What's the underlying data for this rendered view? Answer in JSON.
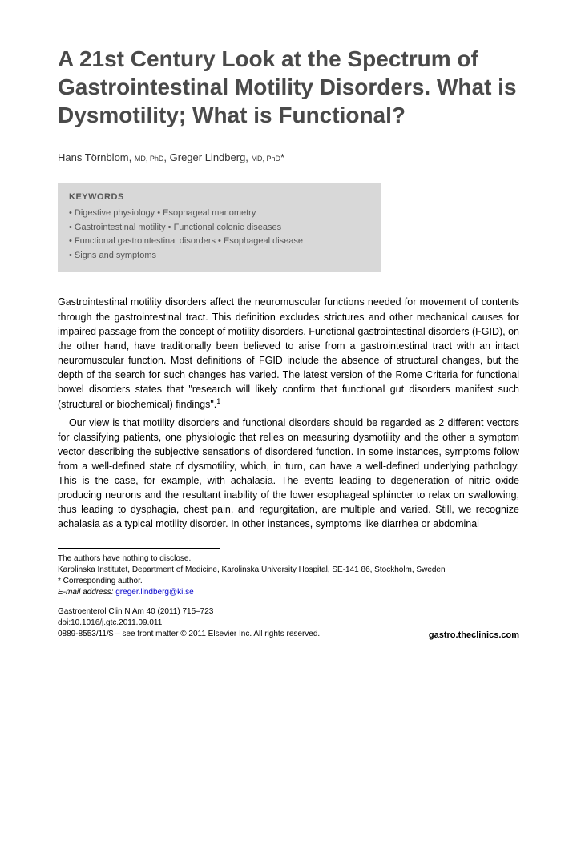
{
  "title": "A 21st Century Look at the Spectrum of Gastrointestinal Motility Disorders. What is Dysmotility; What is Functional?",
  "authors": {
    "a1_name": "Hans Törnblom,",
    "a1_cred": "MD, PhD",
    "sep": ", ",
    "a2_name": "Greger Lindberg,",
    "a2_cred": "MD, PhD",
    "corr": "*"
  },
  "keywords": {
    "heading": "KEYWORDS",
    "line1": "• Digestive physiology  • Esophageal manometry",
    "line2": "• Gastrointestinal motility  • Functional colonic diseases",
    "line3": "• Functional gastrointestinal disorders  • Esophageal disease",
    "line4": "• Signs and symptoms"
  },
  "body": {
    "p1": "Gastrointestinal motility disorders affect the neuromuscular functions needed for movement of contents through the gastrointestinal tract. This definition excludes strictures and other mechanical causes for impaired passage from the concept of motility disorders. Functional gastrointestinal disorders (FGID), on the other hand, have traditionally been believed to arise from a gastrointestinal tract with an intact neuromuscular function. Most definitions of FGID include the absence of structural changes, but the depth of the search for such changes has varied. The latest version of the Rome Criteria for functional bowel disorders states that \"research will likely confirm that functional gut disorders manifest such (structural or biochemical) findings\".",
    "p1_ref": "1",
    "p2": "Our view is that motility disorders and functional disorders should be regarded as 2 different vectors for classifying patients, one physiologic that relies on measuring dysmotility and the other a symptom vector describing the subjective sensations of disordered function. In some instances, symptoms follow from a well-defined state of dysmotility, which, in turn, can have a well-defined underlying pathology. This is the case, for example, with achalasia. The events leading to degeneration of nitric oxide producing neurons and the resultant inability of the lower esophageal sphincter to relax on swallowing, thus leading to dysphagia, chest pain, and regurgitation, are multiple and varied. Still, we recognize achalasia as a typical motility disorder. In other instances, symptoms like diarrhea or abdominal"
  },
  "footnotes": {
    "disclosure": "The authors have nothing to disclose.",
    "affiliation": "Karolinska Institutet, Department of Medicine, Karolinska University Hospital, SE-141 86, Stockholm, Sweden",
    "corr_label": "* Corresponding author.",
    "email_label": "E-mail address:",
    "email": "greger.lindberg@ki.se"
  },
  "journal": {
    "ref": "Gastroenterol Clin N Am 40 (2011) 715–723",
    "doi": "doi:10.1016/j.gtc.2011.09.011",
    "issn": "0889-8553/11/$ – see front matter © 2011 Elsevier Inc. All rights reserved.",
    "site": "gastro.theclinics.com"
  }
}
